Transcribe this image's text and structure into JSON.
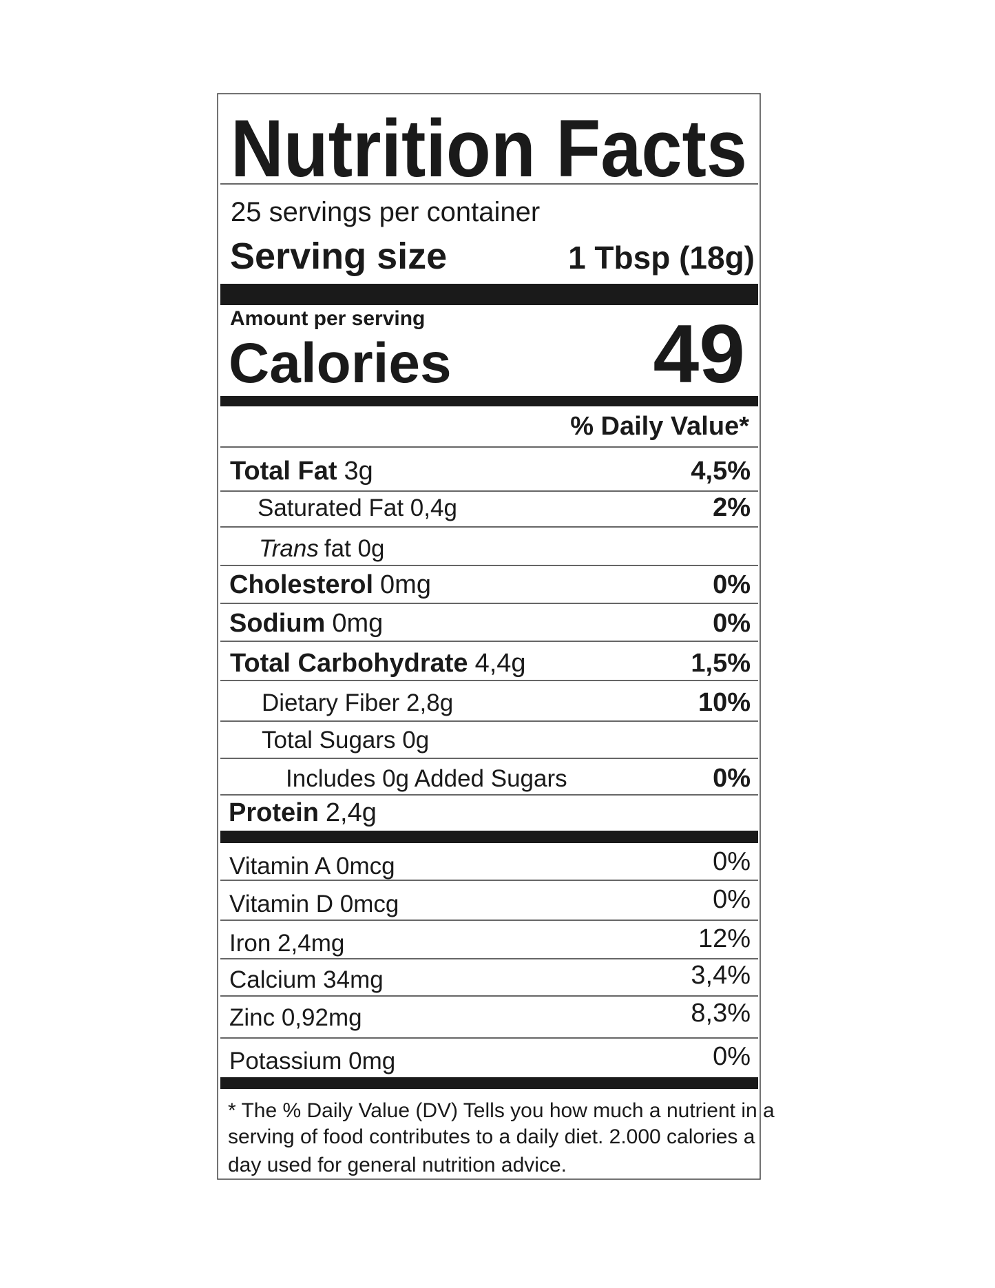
{
  "label": {
    "title": "Nutrition Facts",
    "servings_per_container": "25 servings  per container",
    "serving_size": {
      "label": "Serving size",
      "value": "1 Tbsp (18g)"
    },
    "amount_per_serving": "Amount per serving",
    "calories": {
      "label": "Calories",
      "value": "49"
    },
    "daily_value_header": "% Daily Value*",
    "nutrients": [
      {
        "name": "Total Fat",
        "amount": "3g",
        "dv": "4,5%"
      },
      {
        "label": "Saturated Fat 0,4g",
        "dv": "2%"
      },
      {
        "italic": "Trans",
        "label": "fat 0g"
      },
      {
        "name": "Cholesterol",
        "amount": "0mg",
        "dv": "0%"
      },
      {
        "name": "Sodium",
        "amount": "0mg",
        "dv": "0%"
      },
      {
        "name": "Total Carbohydrate",
        "amount": "4,4g",
        "dv": "1,5%"
      },
      {
        "label": "Dietary Fiber 2,8g",
        "dv": "10%"
      },
      {
        "label": "Total Sugars 0g"
      },
      {
        "label": "Includes  0g Added Sugars",
        "dv": "0%"
      },
      {
        "name": "Protein",
        "amount": "2,4g"
      }
    ],
    "vitamins": [
      {
        "label": "Vitamin A 0mcg",
        "dv": "0%"
      },
      {
        "label": "Vitamin D 0mcg",
        "dv": "0%"
      },
      {
        "label": "Iron 2,4mg",
        "dv": "12%"
      },
      {
        "label": "Calcium 34mg",
        "dv": "3,4%"
      },
      {
        "label": "Zinc 0,92mg",
        "dv": "8,3%"
      },
      {
        "label": "Potassium 0mg",
        "dv": "0%"
      }
    ],
    "footnote": [
      "* The % Daily Value (DV) Tells you how much a nutrient in a",
      "serving of food contributes to a daily diet. 2.000 calories a",
      "day used for general nutrition advice."
    ]
  }
}
